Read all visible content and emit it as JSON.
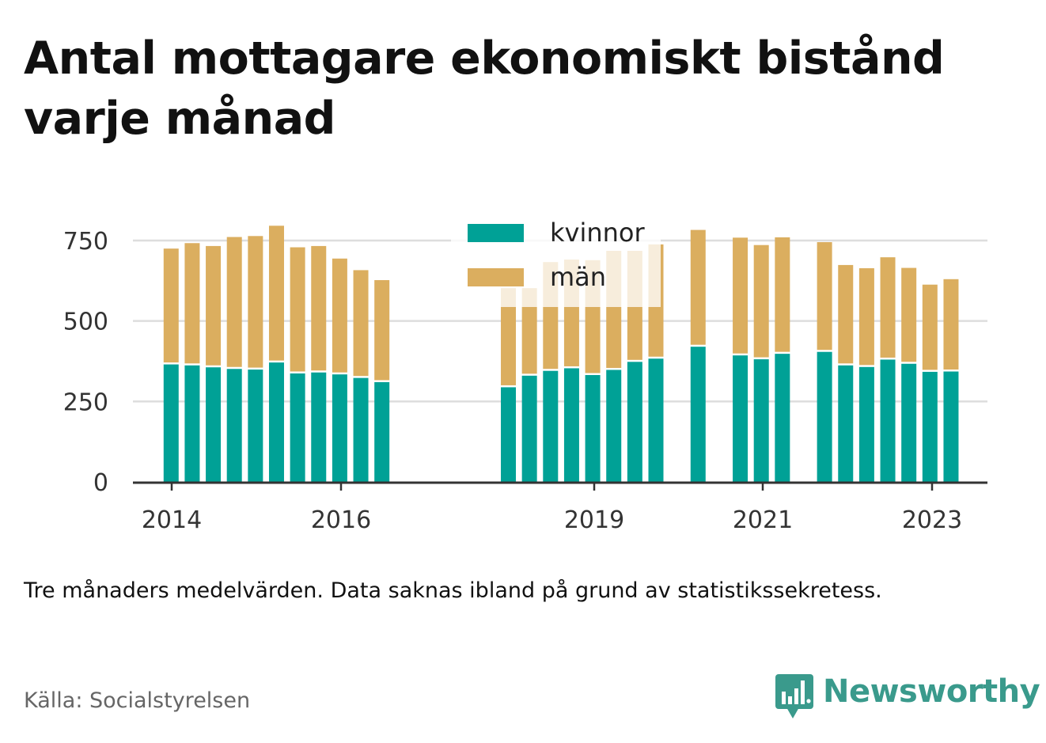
{
  "title": "Antal mottagare ekonomiskt bistånd varje månad",
  "note": "Tre månaders medelvärden. Data saknas ibland på grund av statistikssekretess.",
  "source": "Källa: Socialstyrelsen",
  "brand": {
    "name": "Newsworthy",
    "icon": "newsworthy-logo-icon",
    "color": "#3a9a8c"
  },
  "colors": {
    "kvinnor": "#00a196",
    "man": "#dbae5f",
    "man_faded": "#f6ecdb",
    "grid": "#dddddd",
    "axis": "#333333"
  },
  "chart_data": {
    "type": "bar",
    "stacked": true,
    "x_ticks": [
      "2014",
      "2016",
      "2019",
      "2021",
      "2023"
    ],
    "y_ticks": [
      "0",
      "250",
      "500",
      "750"
    ],
    "ylim": [
      0,
      800
    ],
    "grid": true,
    "legend_position": "top-center",
    "legend": [
      {
        "name": "kvinnor",
        "color": "#00a196"
      },
      {
        "name": "män",
        "color": "#dbae5f"
      }
    ],
    "series": [
      {
        "name": "kvinnor",
        "color": "#00a196",
        "values": [
          365,
          362,
          356,
          351,
          349,
          371,
          337,
          340,
          334,
          323,
          310,
          294,
          330,
          345,
          353,
          332,
          348,
          373,
          383,
          420,
          393,
          381,
          398,
          404,
          362,
          357,
          380,
          367,
          342,
          343
        ]
      },
      {
        "name": "män",
        "color": "#dbae5f",
        "values": [
          360,
          380,
          377,
          410,
          415,
          425,
          392,
          393,
          360,
          335,
          317,
          308,
          272,
          338,
          338,
          357,
          370,
          345,
          355,
          363,
          366,
          355,
          362,
          341,
          312,
          307,
          318,
          298,
          271,
          287
        ]
      }
    ],
    "bars": [
      {
        "date": "2014-07"
      },
      {
        "date": "2014-10"
      },
      {
        "date": "2015-01"
      },
      {
        "date": "2015-04"
      },
      {
        "date": "2015-07"
      },
      {
        "date": "2015-10"
      },
      {
        "date": "2016-01"
      },
      {
        "date": "2016-04"
      },
      {
        "date": "2016-07"
      },
      {
        "date": "2016-10"
      },
      {
        "date": "2017-01"
      },
      {
        "date": "2018-07"
      },
      {
        "date": "2018-10"
      },
      {
        "date": "2019-01"
      },
      {
        "date": "2019-04"
      },
      {
        "date": "2019-07"
      },
      {
        "date": "2019-10"
      },
      {
        "date": "2020-01"
      },
      {
        "date": "2020-04"
      },
      {
        "date": "2020-10"
      },
      {
        "date": "2021-04"
      },
      {
        "date": "2021-07"
      },
      {
        "date": "2021-10"
      },
      {
        "date": "2022-04"
      },
      {
        "date": "2022-07"
      },
      {
        "date": "2022-10"
      },
      {
        "date": "2023-01"
      },
      {
        "date": "2023-04"
      },
      {
        "date": "2023-07"
      },
      {
        "date": "2023-10"
      }
    ]
  }
}
